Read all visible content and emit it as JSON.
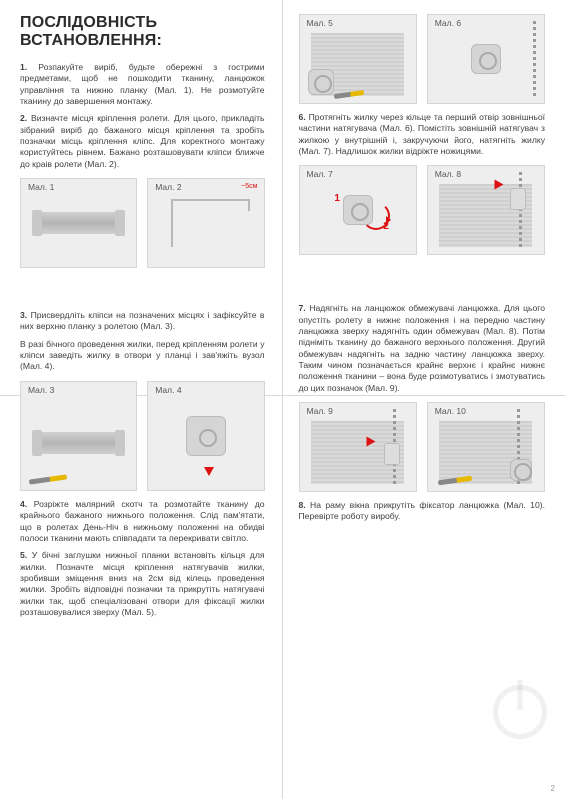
{
  "title": "ПОСЛІДОВНІСТЬ ВСТАНОВЛЕННЯ:",
  "page_number": "2",
  "left_top": {
    "steps": [
      "<b>1.</b> Розпакуйте виріб, будьте обережні з гострими предметами, щоб не пошкодити тканину, ланцюжок управління та нижню планку (Мал. 1). Не розмотуйте тканину до завершення монтажу.",
      "<b>2.</b> Визначте місця кріплення ролети. Для цього, прикладіть зібраний виріб до бажаного місця кріплення та зробіть позначки місць кріплення кліпс. Для коректного монтажу користуйтесь рівнем. Бажано розташовувати кліпси ближче до краів ролети (Мал. 2)."
    ],
    "figs": [
      "Мал. 1",
      "Мал. 2"
    ],
    "dim": "~5см"
  },
  "left_bottom": {
    "steps": [
      "<b>3.</b> Присвердліть кліпси на позначених місцях і зафіксуйте в них верхню планку з ролетою (Мал. 3).",
      "В разі бічного проведення жилки, перед кріпленням ролети у кліпси заведіть жилку в отвори у планці і зав'яжіть вузол (Мал. 4).",
      "<b>4.</b> Розріжте малярний скотч та розмотайте тканину до крайнього бажаного нижнього положення. Слід пам'ятати, що в ролетах День-Ніч в нижньому положенні на обидві полоси тканини мають співпадати та перекривати світло.",
      "<b>5.</b> У бічні заглушки нижньої планки встановіть кільця для жилки. Позначте місця кріплення натягувачів жилки, зробивши зміщення вниз на 2см від кілець проведення жилки. Зробіть відповідні позначки та прикрутіть натягувачі жилки так, щоб спеціалізовані отвори для фіксації жилки розташовувалися зверху (Мал. 5)."
    ],
    "figs": [
      "Мал. 3",
      "Мал. 4"
    ]
  },
  "right_top": {
    "figs_a": [
      "Мал. 5",
      "Мал. 6"
    ],
    "step6": "<b>6.</b> Протягніть жилку через кільце та перший отвір зовнішньої частини натягувача (Мал. 6). Помістіть зовнішній натягувач з жилкою у внутрішній і, закручуючи його, натягніть жилку (Мал. 7). Надлишок жилки відріжте ножицями.",
    "figs_b": [
      "Мал. 7",
      "Мал. 8"
    ]
  },
  "right_bottom": {
    "step7": "<b>7.</b> Надягніть на ланцюжок обмежувачі ланцюжка. Для цього опустіть ролету в нижнє положення і на передню частину ланцюжка зверху надягніть один обмежувач (Мал. 8). Потім підніміть тканину до бажаного верхнього положення. Другий обмежувач надягніть на задню частину ланцюжка зверху. Таким чином позначається крайнє верхнє і крайнє нижнє положення тканини – вона буде розмотуватись і змотуватись до цих позначок (Мал. 9).",
    "figs": [
      "Мал. 9",
      "Мал. 10"
    ],
    "step8": "<b>8.</b> На раму вікна прикрутіть фіксатор ланцюжка (Мал. 10). Перевірте роботу виробу."
  },
  "anno": {
    "one": "1",
    "two": "2"
  }
}
